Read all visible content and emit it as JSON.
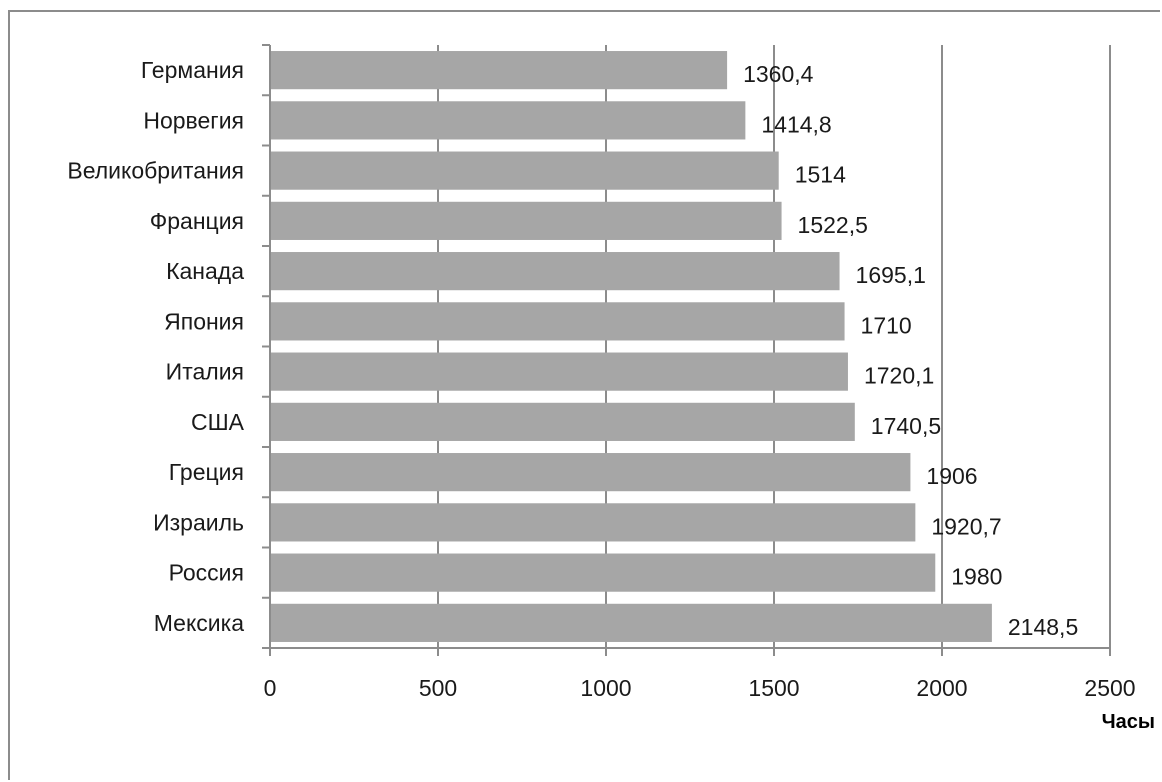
{
  "chart_data": {
    "type": "bar",
    "orientation": "horizontal",
    "categories": [
      "Германия",
      "Норвегия",
      "Великобритания",
      "Франция",
      "Канада",
      "Япония",
      "Италия",
      "США",
      "Греция",
      "Израиль",
      "Россия",
      "Мексика"
    ],
    "values": [
      1360.4,
      1414.8,
      1514,
      1522.5,
      1695.1,
      1710,
      1720.1,
      1740.5,
      1906,
      1920.7,
      1980,
      2148.5
    ],
    "value_labels": [
      "1360,4",
      "1414,8",
      "1514",
      "1522,5",
      "1695,1",
      "1710",
      "1720,1",
      "1740,5",
      "1906",
      "1920,7",
      "1980",
      "2148,5"
    ],
    "title": "",
    "xlabel": "Часы",
    "ylabel": "",
    "xlim": [
      0,
      2500
    ],
    "xticks": [
      0,
      500,
      1000,
      1500,
      2000,
      2500
    ],
    "grid": "vertical",
    "legend": "none",
    "colors": {
      "bar": "#a6a6a6",
      "grid": "#8c8c8c",
      "axis": "#8c8c8c"
    }
  }
}
